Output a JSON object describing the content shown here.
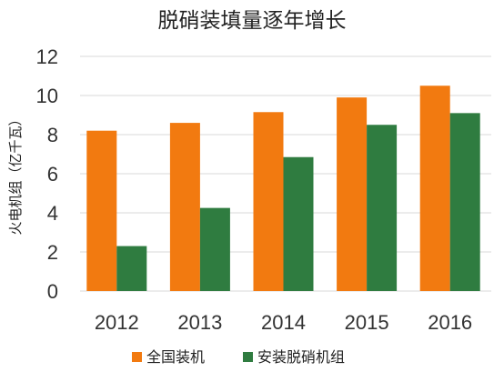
{
  "chart_data": {
    "type": "bar",
    "title": "脱硝装填量逐年增长",
    "ylabel": "火电机组（亿千瓦）",
    "xlabel": "",
    "categories": [
      "2012",
      "2013",
      "2014",
      "2015",
      "2016"
    ],
    "series": [
      {
        "name": "全国装机",
        "color": "#f27a10",
        "values": [
          8.2,
          8.6,
          9.15,
          9.9,
          10.5
        ]
      },
      {
        "name": "安装脱硝机组",
        "color": "#2f7c40",
        "values": [
          2.3,
          4.25,
          6.85,
          8.5,
          9.1
        ]
      }
    ],
    "ylim": [
      0,
      12
    ],
    "yticks": [
      "0",
      "2",
      "4",
      "6",
      "8",
      "10",
      "12"
    ],
    "grid": true,
    "legend_position": "bottom"
  }
}
